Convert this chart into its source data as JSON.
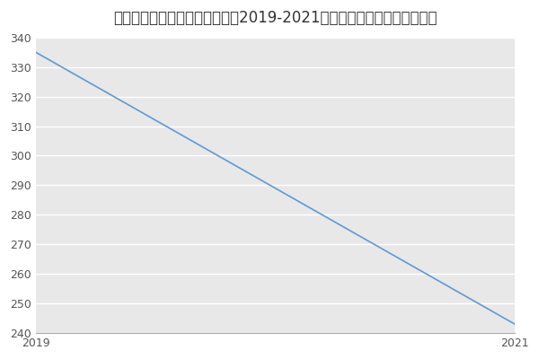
{
  "title": "兰州理工大学信号与信息处理（2019-2021历年复试）研究生录取分数线",
  "x": [
    2019,
    2021
  ],
  "y": [
    335,
    243
  ],
  "line_color": "#5B9BD5",
  "background_color": "#E8E8E8",
  "figure_background": "#FFFFFF",
  "xlim": [
    2019,
    2021
  ],
  "ylim": [
    240,
    340
  ],
  "yticks": [
    240,
    250,
    260,
    270,
    280,
    290,
    300,
    310,
    320,
    330,
    340
  ],
  "xticks": [
    2019,
    2021
  ],
  "title_fontsize": 12,
  "tick_fontsize": 9,
  "grid_color": "#FFFFFF",
  "linewidth": 1.2
}
